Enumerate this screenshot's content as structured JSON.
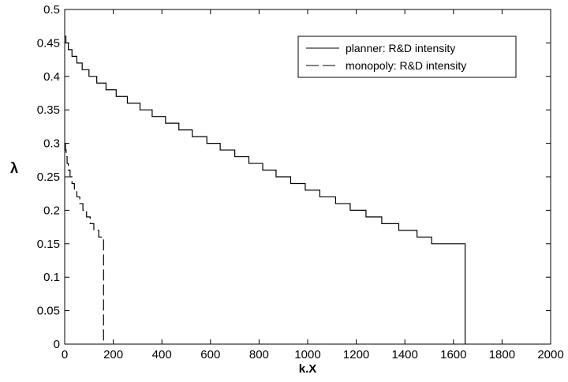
{
  "chart_data": {
    "type": "line",
    "xlabel": "k.X",
    "ylabel": "λ",
    "xlim": [
      0,
      2000
    ],
    "ylim": [
      0,
      0.5
    ],
    "x_ticks": [
      "0",
      "200",
      "400",
      "600",
      "800",
      "1000",
      "1200",
      "1400",
      "1600",
      "1800",
      "2000"
    ],
    "y_ticks": [
      "0",
      "0.05",
      "0.1",
      "0.15",
      "0.2",
      "0.25",
      "0.3",
      "0.35",
      "0.4",
      "0.45",
      "0.5"
    ],
    "grid": false,
    "legend_position": "top-right",
    "series": [
      {
        "name": "planner: R&D intensity",
        "line_style": "solid",
        "color": "#000000",
        "points": [
          [
            0,
            0.46
          ],
          [
            5,
            0.46
          ],
          [
            5,
            0.45
          ],
          [
            15,
            0.45
          ],
          [
            15,
            0.44
          ],
          [
            30,
            0.44
          ],
          [
            30,
            0.43
          ],
          [
            50,
            0.43
          ],
          [
            50,
            0.42
          ],
          [
            72,
            0.42
          ],
          [
            72,
            0.41
          ],
          [
            100,
            0.41
          ],
          [
            100,
            0.4
          ],
          [
            132,
            0.4
          ],
          [
            132,
            0.39
          ],
          [
            170,
            0.39
          ],
          [
            170,
            0.38
          ],
          [
            212,
            0.38
          ],
          [
            212,
            0.37
          ],
          [
            258,
            0.37
          ],
          [
            258,
            0.36
          ],
          [
            310,
            0.36
          ],
          [
            310,
            0.35
          ],
          [
            360,
            0.35
          ],
          [
            360,
            0.34
          ],
          [
            415,
            0.34
          ],
          [
            415,
            0.33
          ],
          [
            470,
            0.33
          ],
          [
            470,
            0.32
          ],
          [
            525,
            0.32
          ],
          [
            525,
            0.31
          ],
          [
            585,
            0.31
          ],
          [
            585,
            0.3
          ],
          [
            640,
            0.3
          ],
          [
            640,
            0.29
          ],
          [
            700,
            0.29
          ],
          [
            700,
            0.28
          ],
          [
            758,
            0.28
          ],
          [
            758,
            0.27
          ],
          [
            815,
            0.27
          ],
          [
            815,
            0.26
          ],
          [
            870,
            0.26
          ],
          [
            870,
            0.25
          ],
          [
            930,
            0.25
          ],
          [
            930,
            0.24
          ],
          [
            990,
            0.24
          ],
          [
            990,
            0.23
          ],
          [
            1050,
            0.23
          ],
          [
            1050,
            0.22
          ],
          [
            1115,
            0.22
          ],
          [
            1115,
            0.21
          ],
          [
            1175,
            0.21
          ],
          [
            1175,
            0.2
          ],
          [
            1240,
            0.2
          ],
          [
            1240,
            0.19
          ],
          [
            1305,
            0.19
          ],
          [
            1305,
            0.18
          ],
          [
            1375,
            0.18
          ],
          [
            1375,
            0.17
          ],
          [
            1450,
            0.17
          ],
          [
            1450,
            0.16
          ],
          [
            1510,
            0.16
          ],
          [
            1510,
            0.15
          ],
          [
            1648,
            0.15
          ],
          [
            1648,
            0.0
          ]
        ]
      },
      {
        "name": "monopoly: R&D intensity",
        "line_style": "dashed",
        "color": "#000000",
        "points": [
          [
            0,
            0.3
          ],
          [
            3,
            0.3
          ],
          [
            3,
            0.29
          ],
          [
            6,
            0.29
          ],
          [
            6,
            0.28
          ],
          [
            10,
            0.28
          ],
          [
            10,
            0.27
          ],
          [
            15,
            0.27
          ],
          [
            15,
            0.26
          ],
          [
            22,
            0.26
          ],
          [
            22,
            0.25
          ],
          [
            30,
            0.25
          ],
          [
            30,
            0.24
          ],
          [
            40,
            0.24
          ],
          [
            40,
            0.23
          ],
          [
            50,
            0.23
          ],
          [
            50,
            0.22
          ],
          [
            62,
            0.22
          ],
          [
            62,
            0.21
          ],
          [
            75,
            0.21
          ],
          [
            75,
            0.2
          ],
          [
            90,
            0.2
          ],
          [
            90,
            0.19
          ],
          [
            105,
            0.19
          ],
          [
            105,
            0.18
          ],
          [
            120,
            0.18
          ],
          [
            120,
            0.17
          ],
          [
            140,
            0.17
          ],
          [
            140,
            0.16
          ],
          [
            160,
            0.16
          ],
          [
            160,
            0.0
          ]
        ]
      }
    ]
  }
}
